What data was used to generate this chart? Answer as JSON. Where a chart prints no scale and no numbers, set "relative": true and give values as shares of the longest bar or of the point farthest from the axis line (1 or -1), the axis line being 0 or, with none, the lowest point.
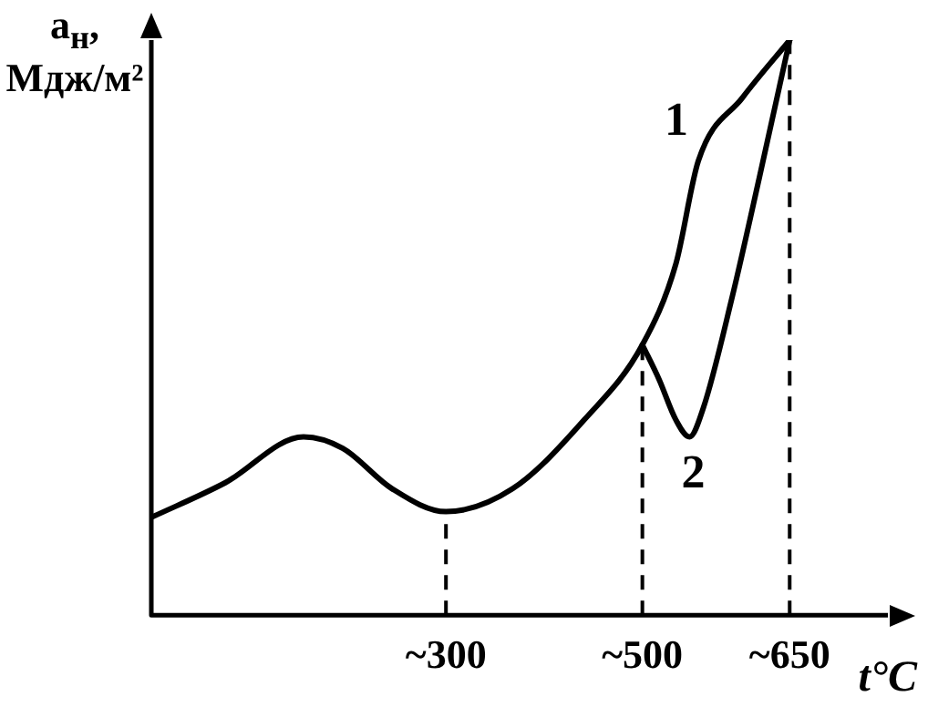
{
  "chart_data": {
    "type": "line",
    "relative": true,
    "ylabel": "a$_{н}$, Мдж/м²",
    "xlabel": "t°C",
    "xlim": [
      0,
      750
    ],
    "xticks": [
      {
        "value": 300,
        "label": "~300"
      },
      {
        "value": 500,
        "label": "~500"
      },
      {
        "value": 650,
        "label": "~650"
      }
    ],
    "series": [
      {
        "name": "1",
        "color": "#000000",
        "x": [
          0,
          75,
          155,
          195,
          245,
          300,
          368,
          441,
          500,
          534,
          557,
          602,
          650
        ],
        "values": [
          0.17,
          0.23,
          0.31,
          0.29,
          0.22,
          0.18,
          0.22,
          0.34,
          0.47,
          0.61,
          0.79,
          0.9,
          1
        ]
      },
      {
        "name": "2",
        "color": "#000000",
        "x": [
          500,
          517,
          534,
          548,
          562,
          591,
          619,
          650
        ],
        "values": [
          0.47,
          0.41,
          0.34,
          0.31,
          0.36,
          0.55,
          0.76,
          1
        ]
      }
    ],
    "ref_lines": [
      {
        "axis": "x",
        "value": 300,
        "line_style": "dashed"
      },
      {
        "axis": "x",
        "value": 500,
        "line_style": "dashed"
      },
      {
        "axis": "x",
        "value": 650,
        "line_style": "dashed"
      }
    ],
    "grid": false,
    "legend": false,
    "marker": "none",
    "line_style": "solid"
  }
}
